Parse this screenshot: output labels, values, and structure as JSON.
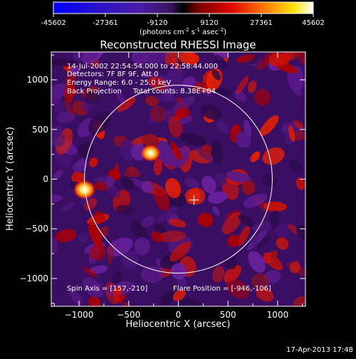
{
  "colorbar": {
    "ticks": [
      "-45602",
      "-27361",
      "-9120",
      "9120",
      "27361",
      "45602"
    ],
    "unit_prefix": "(photons cm",
    "unit_exp1": "-2",
    "unit_mid": " s",
    "unit_exp2": "-1",
    "unit_mid2": " asec",
    "unit_exp3": "-2",
    "unit_suffix": ")"
  },
  "chart_data": {
    "type": "heatmap",
    "title": "Reconstructed RHESSI Image",
    "xlabel": "Heliocentric X (arcsec)",
    "ylabel": "Heliocentric Y (arcsec)",
    "xlim": [
      -1280,
      1280
    ],
    "ylim": [
      -1280,
      1280
    ],
    "x_ticks": [
      -1000,
      -500,
      0,
      500,
      1000
    ],
    "y_ticks": [
      -1000,
      -500,
      0,
      500,
      1000
    ],
    "x_tick_labels": [
      "−1000",
      "−500",
      "0",
      "500",
      "1000"
    ],
    "y_tick_labels": [
      "−1000",
      "−500",
      "0",
      "500",
      "1000"
    ],
    "colorbar_range": [
      -45602,
      45602
    ],
    "solar_limb_radius_arcsec": 946,
    "sources": [
      {
        "x": -946,
        "y": -106,
        "relative_intensity": 1.0
      },
      {
        "x": -280,
        "y": 262,
        "relative_intensity": 0.9
      }
    ],
    "spin_axis_marker": {
      "x": 157,
      "y": -210
    },
    "annotations": [
      "14-Jul-2002 22:54:54.000 to 22:58:44.000",
      "Detectors: 7F 8F 9F, Att 0",
      "Energy Range: 6.0 - 25.0 keV",
      "Back Projection     Total counts: 8.38E+04",
      "Spin Axis = [157,-210]",
      "Flare Position = [-946,-106]"
    ]
  },
  "footer": {
    "timestamp": "17-Apr-2013 17:48"
  }
}
